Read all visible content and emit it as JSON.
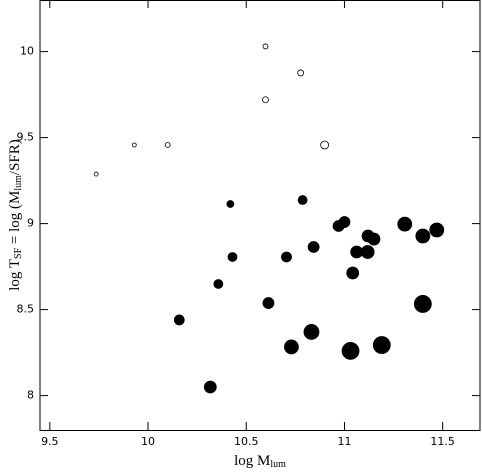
{
  "chart_data": {
    "type": "scatter",
    "x_label": [
      {
        "text": "log M"
      },
      {
        "text": "lum",
        "sub": true
      }
    ],
    "y_label": [
      {
        "text": "log T"
      },
      {
        "text": "SF",
        "sub": true
      },
      {
        "text": " = log (M"
      },
      {
        "text": "lum",
        "sub": true
      },
      {
        "text": "/SFR)"
      }
    ],
    "xlim": [
      9.45,
      11.69
    ],
    "ylim": [
      7.8,
      10.3
    ],
    "xticks": [
      9.5,
      10,
      10.5,
      11,
      11.5
    ],
    "yticks": [
      8,
      8.5,
      9,
      9.5,
      10
    ],
    "series": [
      {
        "filled": false,
        "color": "#000000",
        "x": [
          9.736,
          9.93,
          10.1,
          10.598,
          10.598,
          10.777,
          10.899
        ],
        "values": [
          9.288,
          9.457,
          9.457,
          10.03,
          9.72,
          9.876,
          9.457
        ],
        "sizes": [
          2,
          2,
          2.5,
          2.5,
          3,
          3,
          4
        ]
      },
      {
        "filled": true,
        "color": "#000000",
        "x": [
          10.419,
          10.787,
          10.43,
          10.358,
          10.159,
          10.613,
          10.317,
          10.705,
          10.843,
          10.97,
          11.0,
          11.062,
          11.042,
          11.12,
          11.15,
          11.118,
          11.307,
          11.399,
          11.47,
          11.399,
          10.73,
          10.832,
          11.031,
          11.19
        ],
        "values": [
          9.114,
          9.137,
          8.806,
          8.649,
          8.44,
          8.538,
          8.05,
          8.806,
          8.864,
          8.986,
          9.009,
          8.835,
          8.713,
          8.928,
          8.91,
          8.835,
          8.997,
          8.928,
          8.963,
          8.533,
          8.283,
          8.37,
          8.26,
          8.294
        ],
        "sizes": [
          3.5,
          4.5,
          4.5,
          4.5,
          5,
          5.5,
          6,
          5,
          5.5,
          5.5,
          5.5,
          6,
          6,
          6,
          6,
          6.5,
          7,
          7,
          7,
          8.5,
          7,
          7.5,
          8.5,
          8.5
        ]
      }
    ]
  }
}
